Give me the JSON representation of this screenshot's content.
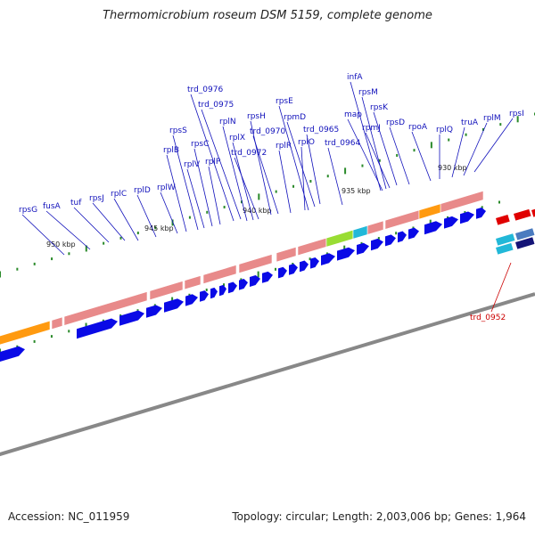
{
  "title": "Thermomicrobium roseum DSM 5159, complete genome",
  "footer": {
    "accession": "Accession: NC_011959",
    "summary": "Topology: circular; Length: 2,003,006 bp; Genes: 1,964"
  },
  "scale_labels": [
    "930 kbp",
    "935 kbp",
    "940 kbp",
    "945 kbp",
    "950 kbp"
  ],
  "gene_labels": [
    "infA",
    "rpsM",
    "map",
    "rpmJ",
    "rpsK",
    "rpsD",
    "rpoA",
    "rplQ",
    "truA",
    "rplM",
    "rpsI",
    "rpsE",
    "rpmD",
    "trd_0965",
    "trd_0964",
    "rplO",
    "rplR",
    "trd_0970",
    "rpsH",
    "trd_0976",
    "trd_0975",
    "rplN",
    "rplX",
    "trd_0972",
    "rplP",
    "rpsC",
    "rplV",
    "rpsS",
    "rplB",
    "rplW",
    "rplD",
    "rplC",
    "rpsJ",
    "tuf",
    "fusA",
    "rpsG"
  ],
  "highlight_label": "trd_0952",
  "colors": {
    "gene_label": "#1111bb",
    "highlight_label": "#cc0000",
    "cds_arrow": "#0a0ae6",
    "rna_band": "#e88a8a",
    "orange_band": "#ff9a10",
    "green_band": "#99dd33",
    "cyan_band": "#22b8d8",
    "tick": "#2a8a2a",
    "backbone": "#888888"
  }
}
